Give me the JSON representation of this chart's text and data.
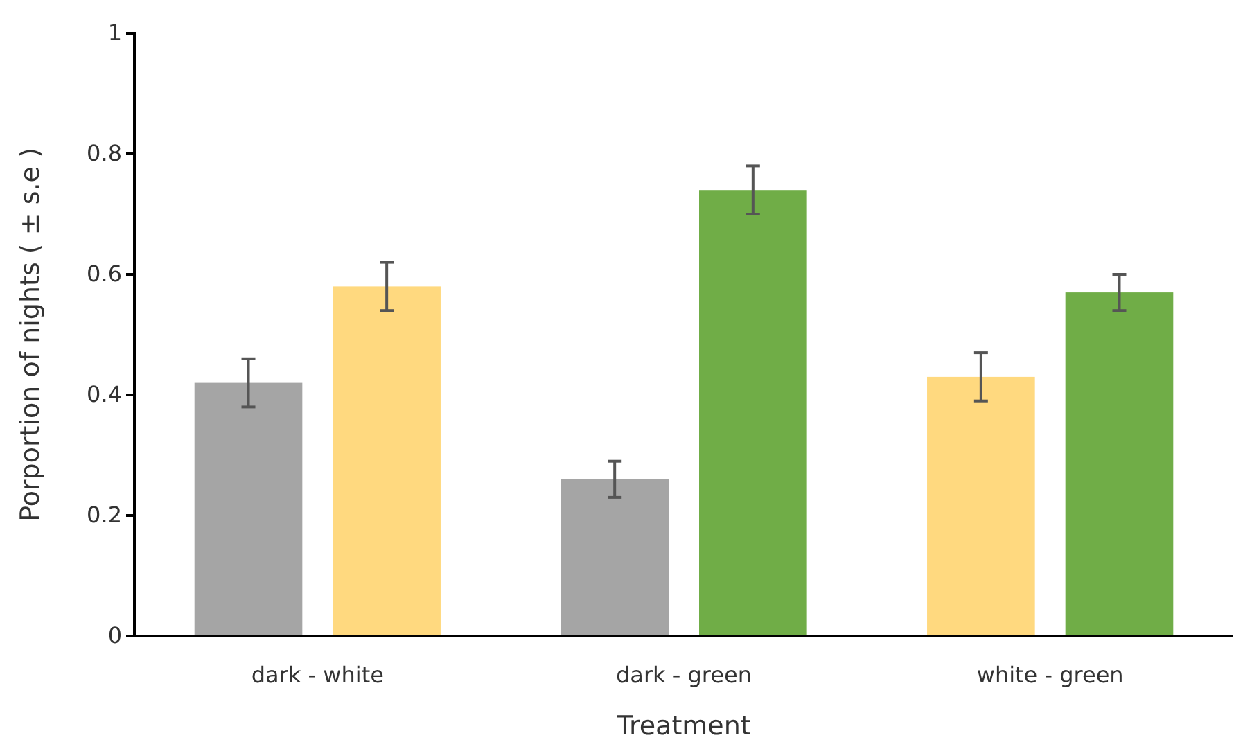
{
  "chart_data": {
    "type": "bar",
    "xlabel": "Treatment",
    "ylabel": "Porportion of nights ( ± s.e )",
    "categories": [
      "dark - white",
      "dark - green",
      "white - green"
    ],
    "series": [
      {
        "colors": [
          "#a5a5a5",
          "#a5a5a5",
          "#ffd97f"
        ],
        "values": [
          0.42,
          0.26,
          0.43
        ],
        "errors": [
          0.04,
          0.03,
          0.04
        ]
      },
      {
        "colors": [
          "#ffd97f",
          "#70ad47",
          "#70ad47"
        ],
        "values": [
          0.58,
          0.74,
          0.57
        ],
        "errors": [
          0.04,
          0.04,
          0.03
        ]
      }
    ],
    "ylim": [
      0,
      1
    ],
    "yticks": [
      0,
      0.2,
      0.4,
      0.6,
      0.8,
      1
    ],
    "grid": false
  }
}
